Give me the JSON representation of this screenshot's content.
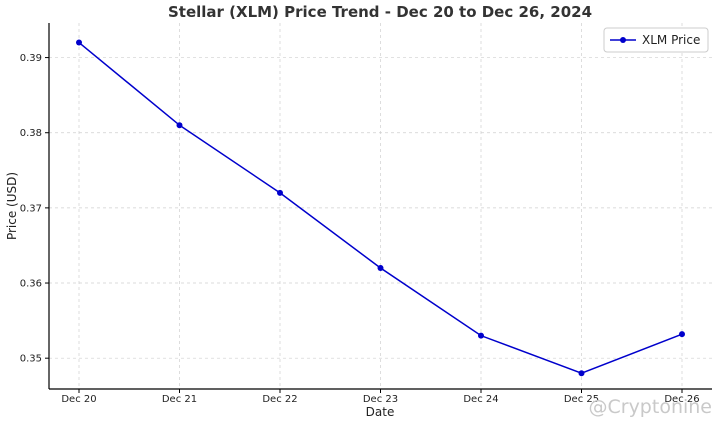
{
  "chart_data": {
    "type": "line",
    "title": "Stellar (XLM) Price Trend - Dec 20 to Dec 26, 2024",
    "xlabel": "Date",
    "ylabel": "Price (USD)",
    "x": [
      "Dec 20",
      "Dec 21",
      "Dec 22",
      "Dec 23",
      "Dec 24",
      "Dec 25",
      "Dec 26"
    ],
    "series": [
      {
        "name": "XLM Price",
        "color": "#0000cc",
        "values": [
          0.392,
          0.381,
          0.372,
          0.362,
          0.353,
          0.348,
          0.3532
        ]
      }
    ],
    "yticks": [
      0.35,
      0.36,
      0.37,
      0.38,
      0.39
    ],
    "ytick_labels": [
      "0.35",
      "0.36",
      "0.37",
      "0.38",
      "0.39"
    ],
    "ylim": [
      0.3459,
      0.3946
    ],
    "grid": true,
    "legend": "top-right",
    "marker": "circle"
  },
  "watermark": "@Cryptonine"
}
